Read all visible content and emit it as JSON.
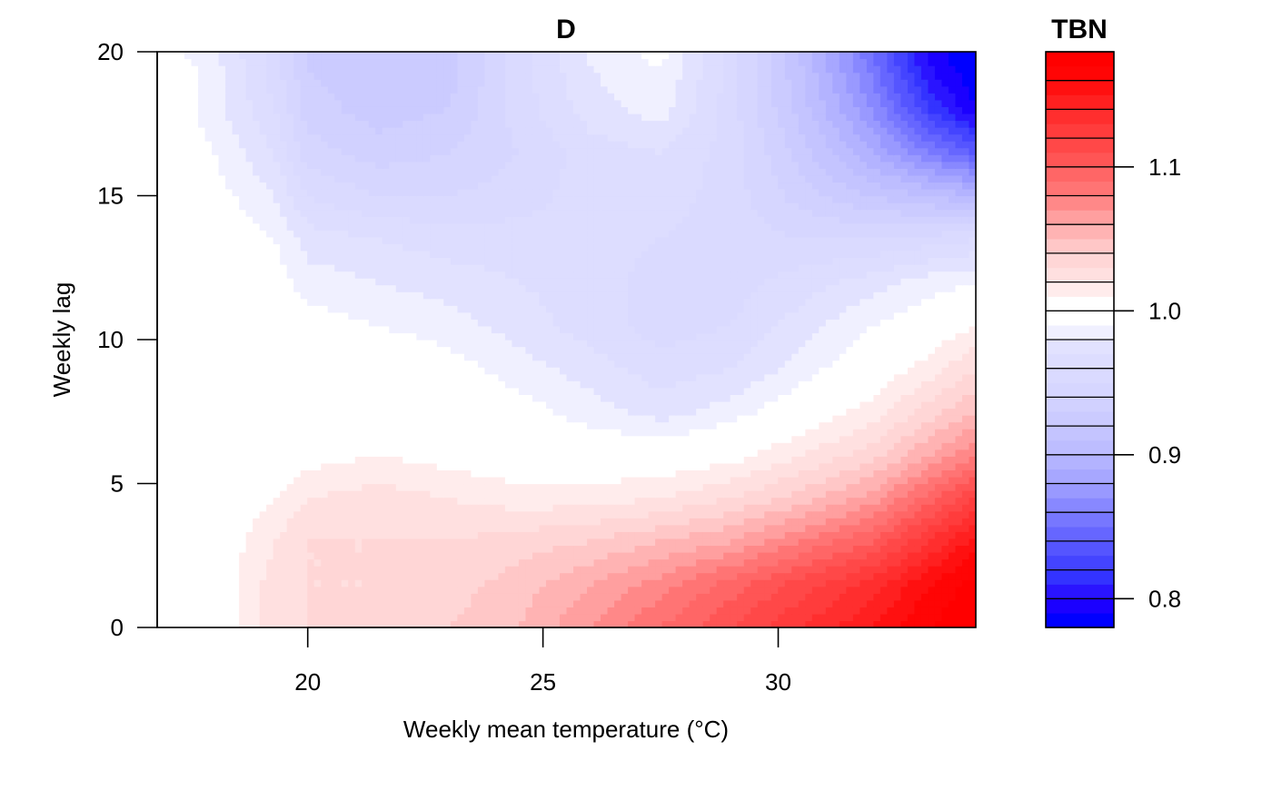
{
  "chart_data": {
    "type": "heatmap",
    "subtype": "filled-contour",
    "title": "D",
    "xlabel": "Weekly mean temperature (°C)",
    "ylabel": "Weekly lag",
    "xlim": [
      16.8,
      34.2
    ],
    "ylim": [
      0,
      20
    ],
    "x_ticks": [
      20,
      25,
      30
    ],
    "y_ticks": [
      0,
      5,
      10,
      15,
      20
    ],
    "legend": {
      "title": "TBN",
      "placement": "right",
      "ticks": [
        {
          "value": 0.8,
          "label": "0.8"
        },
        {
          "value": 0.9,
          "label": "0.9"
        },
        {
          "value": 1.0,
          "label": "1.0"
        },
        {
          "value": 1.1,
          "label": "1.1"
        }
      ],
      "levels": [
        0.78,
        0.79,
        0.8,
        0.81,
        0.82,
        0.83,
        0.84,
        0.85,
        0.86,
        0.87,
        0.88,
        0.89,
        0.9,
        0.91,
        0.92,
        0.93,
        0.94,
        0.95,
        0.96,
        0.97,
        0.98,
        0.99,
        1.0,
        1.01,
        1.02,
        1.03,
        1.04,
        1.05,
        1.06,
        1.07,
        1.08,
        1.09,
        1.1,
        1.11,
        1.12,
        1.13,
        1.14,
        1.15,
        1.16,
        1.17,
        1.18
      ],
      "bands": [
        {
          "range": [
            0.78,
            0.79
          ],
          "color": "#0000FF"
        },
        {
          "range": [
            0.79,
            0.8
          ],
          "color": "#1B00FF"
        },
        {
          "range": [
            0.8,
            0.81
          ],
          "color": "#2A14FF"
        },
        {
          "range": [
            0.81,
            0.82
          ],
          "color": "#3333FF"
        },
        {
          "range": [
            0.82,
            0.83
          ],
          "color": "#4444FF"
        },
        {
          "range": [
            0.83,
            0.84
          ],
          "color": "#5555FF"
        },
        {
          "range": [
            0.84,
            0.85
          ],
          "color": "#6666FF"
        },
        {
          "range": [
            0.85,
            0.86
          ],
          "color": "#7777FF"
        },
        {
          "range": [
            0.86,
            0.87
          ],
          "color": "#8888FF"
        },
        {
          "range": [
            0.87,
            0.88
          ],
          "color": "#9999FF"
        },
        {
          "range": [
            0.88,
            0.89
          ],
          "color": "#A7A7FF"
        },
        {
          "range": [
            0.89,
            0.9
          ],
          "color": "#B3B3FF"
        },
        {
          "range": [
            0.9,
            0.91
          ],
          "color": "#BDBDFF"
        },
        {
          "range": [
            0.91,
            0.92
          ],
          "color": "#C4C4FF"
        },
        {
          "range": [
            0.92,
            0.93
          ],
          "color": "#CBCBFF"
        },
        {
          "range": [
            0.93,
            0.94
          ],
          "color": "#D1D1FF"
        },
        {
          "range": [
            0.94,
            0.95
          ],
          "color": "#D6D6FF"
        },
        {
          "range": [
            0.95,
            0.96
          ],
          "color": "#DADAFF"
        },
        {
          "range": [
            0.96,
            0.97
          ],
          "color": "#DDDDFF"
        },
        {
          "range": [
            0.97,
            0.98
          ],
          "color": "#E2E2FF"
        },
        {
          "range": [
            0.98,
            0.99
          ],
          "color": "#F0F0FF"
        },
        {
          "range": [
            0.99,
            1.0
          ],
          "color": "#FFFFFF"
        },
        {
          "range": [
            1.0,
            1.01
          ],
          "color": "#FFFFFF"
        },
        {
          "range": [
            1.01,
            1.02
          ],
          "color": "#FFECEC"
        },
        {
          "range": [
            1.02,
            1.03
          ],
          "color": "#FFE0E0"
        },
        {
          "range": [
            1.03,
            1.04
          ],
          "color": "#FFD6D6"
        },
        {
          "range": [
            1.04,
            1.05
          ],
          "color": "#FFC7C7"
        },
        {
          "range": [
            1.05,
            1.06
          ],
          "color": "#FFB3B3"
        },
        {
          "range": [
            1.06,
            1.07
          ],
          "color": "#FF9F9F"
        },
        {
          "range": [
            1.07,
            1.08
          ],
          "color": "#FF8888"
        },
        {
          "range": [
            1.08,
            1.09
          ],
          "color": "#FF7474"
        },
        {
          "range": [
            1.09,
            1.1
          ],
          "color": "#FF6666"
        },
        {
          "range": [
            1.1,
            1.11
          ],
          "color": "#FF5555"
        },
        {
          "range": [
            1.11,
            1.12
          ],
          "color": "#FF4848"
        },
        {
          "range": [
            1.12,
            1.13
          ],
          "color": "#FF3C3C"
        },
        {
          "range": [
            1.13,
            1.14
          ],
          "color": "#FF2E2E"
        },
        {
          "range": [
            1.14,
            1.15
          ],
          "color": "#FF2020"
        },
        {
          "range": [
            1.15,
            1.16
          ],
          "color": "#FF1010"
        },
        {
          "range": [
            1.16,
            1.17
          ],
          "color": "#FF0505"
        },
        {
          "range": [
            1.17,
            1.18
          ],
          "color": "#FF0000"
        }
      ]
    },
    "surface_trend": {
      "note_source": "value shown by colour",
      "cold_low_lag": 1.02,
      "hot_low_lag_max": 1.18,
      "hot_high_lag_min": 0.78,
      "mid_lag_trough": 0.95
    },
    "grid_values": {
      "x": [
        16.8,
        18,
        19.3,
        20,
        21.5,
        23,
        24.5,
        26,
        27.5,
        29,
        30.5,
        32,
        33.2,
        34.2
      ],
      "y": [
        0,
        1.5,
        3,
        4.5,
        6,
        7.5,
        9,
        10.5,
        12,
        13.5,
        15,
        16.5,
        18,
        19.5,
        20
      ],
      "z": [
        [
          1.0,
          1.0,
          1.025,
          1.03,
          1.035,
          1.04,
          1.05,
          1.07,
          1.09,
          1.11,
          1.13,
          1.15,
          1.17,
          1.18
        ],
        [
          1.0,
          1.0,
          1.025,
          1.03,
          1.03,
          1.035,
          1.045,
          1.06,
          1.075,
          1.095,
          1.115,
          1.135,
          1.16,
          1.175
        ],
        [
          1.0,
          1.0,
          1.02,
          1.03,
          1.03,
          1.03,
          1.035,
          1.04,
          1.05,
          1.06,
          1.08,
          1.1,
          1.13,
          1.155
        ],
        [
          1.0,
          1.0,
          1.01,
          1.02,
          1.025,
          1.02,
          1.015,
          1.015,
          1.02,
          1.03,
          1.045,
          1.065,
          1.095,
          1.12
        ],
        [
          1.0,
          1.0,
          1.0,
          1.005,
          1.01,
          1.005,
          1.0,
          1.0,
          1.0,
          1.005,
          1.02,
          1.035,
          1.06,
          1.08
        ],
        [
          1.0,
          1.0,
          1.0,
          1.0,
          1.0,
          1.0,
          0.995,
          0.985,
          0.975,
          0.985,
          1.0,
          1.015,
          1.035,
          1.05
        ],
        [
          1.0,
          1.0,
          1.0,
          1.0,
          1.0,
          0.995,
          0.985,
          0.975,
          0.965,
          0.97,
          0.985,
          1.0,
          1.015,
          1.03
        ],
        [
          1.0,
          1.0,
          1.0,
          0.995,
          0.99,
          0.985,
          0.975,
          0.965,
          0.955,
          0.96,
          0.975,
          0.99,
          1.0,
          1.01
        ],
        [
          1.0,
          1.0,
          0.995,
          0.985,
          0.98,
          0.975,
          0.97,
          0.965,
          0.955,
          0.955,
          0.965,
          0.975,
          0.985,
          0.99
        ],
        [
          1.0,
          1.0,
          0.99,
          0.975,
          0.97,
          0.965,
          0.965,
          0.965,
          0.96,
          0.955,
          0.95,
          0.95,
          0.955,
          0.96
        ],
        [
          1.0,
          0.995,
          0.98,
          0.96,
          0.95,
          0.95,
          0.955,
          0.965,
          0.965,
          0.955,
          0.935,
          0.92,
          0.91,
          0.9
        ],
        [
          1.0,
          0.99,
          0.97,
          0.945,
          0.935,
          0.94,
          0.95,
          0.965,
          0.97,
          0.955,
          0.925,
          0.89,
          0.86,
          0.84
        ],
        [
          1.0,
          0.985,
          0.96,
          0.935,
          0.925,
          0.93,
          0.955,
          0.975,
          0.985,
          0.955,
          0.915,
          0.87,
          0.82,
          0.79
        ],
        [
          1.0,
          0.985,
          0.955,
          0.93,
          0.92,
          0.925,
          0.955,
          0.98,
          0.99,
          0.955,
          0.91,
          0.855,
          0.8,
          0.78
        ],
        [
          1.0,
          0.98,
          0.955,
          0.93,
          0.92,
          0.925,
          0.955,
          0.98,
          0.995,
          0.955,
          0.91,
          0.85,
          0.795,
          0.78
        ]
      ]
    }
  }
}
